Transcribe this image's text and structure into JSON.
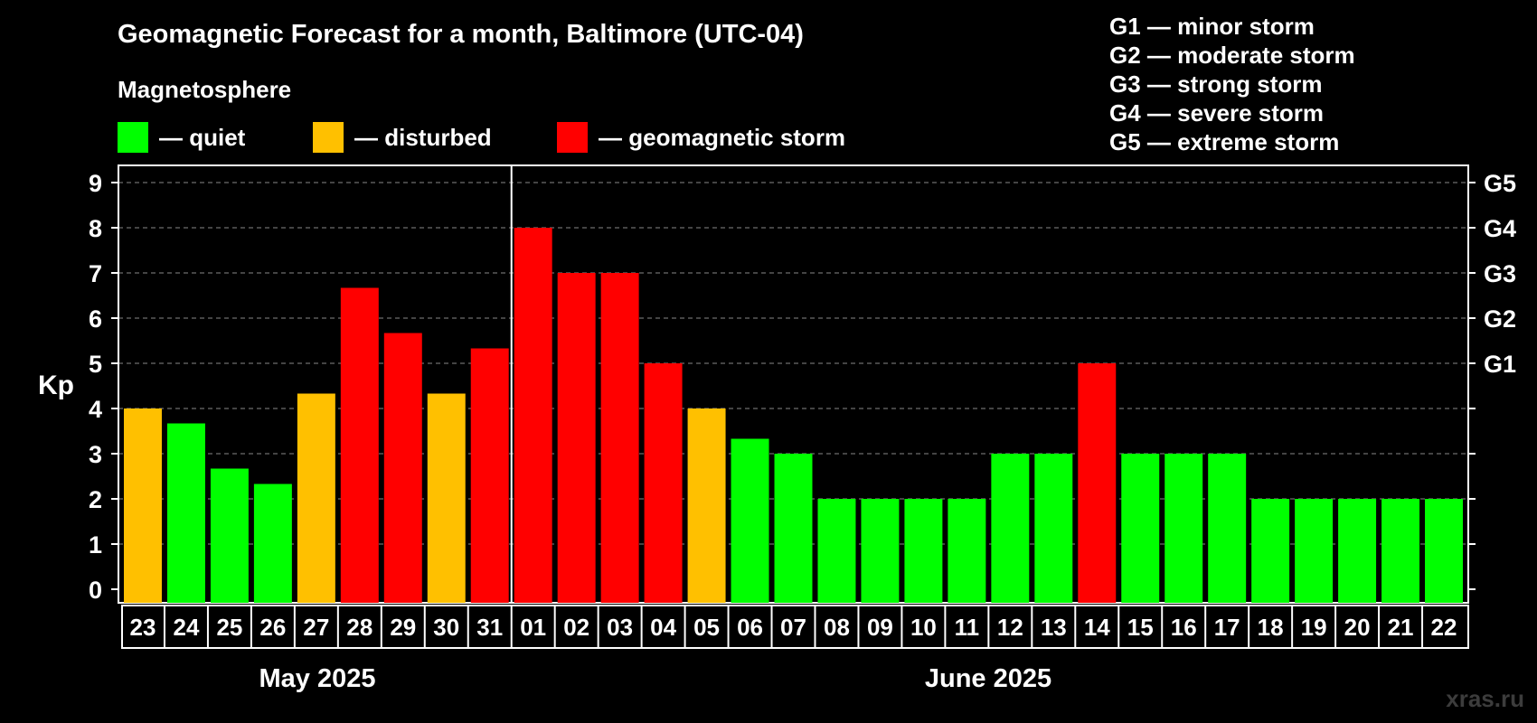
{
  "header": {
    "title": "Geomagnetic Forecast for a month, Baltimore (UTC-04)",
    "subtitle": "Magnetosphere"
  },
  "legend": [
    {
      "label": "— quiet",
      "color": "#00ff00"
    },
    {
      "label": "— disturbed",
      "color": "#ffc000"
    },
    {
      "label": "— geomagnetic storm",
      "color": "#ff0000"
    }
  ],
  "storm_legend": [
    "G1 — minor storm",
    "G2 — moderate storm",
    "G3 — strong storm",
    "G4 — severe storm",
    "G5 — extreme storm"
  ],
  "months": {
    "may": "May 2025",
    "june": "June 2025"
  },
  "watermark": "xras.ru",
  "colors": {
    "quiet": "#00ff00",
    "disturbed": "#ffc000",
    "storm": "#ff0000",
    "background": "#000000",
    "grid": "#888888"
  },
  "chart_data": {
    "type": "bar",
    "title": "Geomagnetic Forecast for a month, Baltimore (UTC-04)",
    "ylabel": "Kp",
    "ylim": [
      0,
      9
    ],
    "yticks": [
      "0",
      "1",
      "2",
      "3",
      "4",
      "5",
      "6",
      "7",
      "8",
      "9"
    ],
    "right_ticks": [
      {
        "value": 5,
        "label": "G1"
      },
      {
        "value": 6,
        "label": "G2"
      },
      {
        "value": 7,
        "label": "G3"
      },
      {
        "value": 8,
        "label": "G4"
      },
      {
        "value": 9,
        "label": "G5"
      }
    ],
    "month_boundary_after_index": 8,
    "categories": [
      "23",
      "24",
      "25",
      "26",
      "27",
      "28",
      "29",
      "30",
      "31",
      "01",
      "02",
      "03",
      "04",
      "05",
      "06",
      "07",
      "08",
      "09",
      "10",
      "11",
      "12",
      "13",
      "14",
      "15",
      "16",
      "17",
      "18",
      "19",
      "20",
      "21",
      "22"
    ],
    "values": [
      4,
      3.67,
      2.67,
      2.33,
      4.33,
      6.67,
      5.67,
      4.33,
      5.33,
      8,
      7,
      7,
      5,
      4,
      3.33,
      3,
      2,
      2,
      2,
      2,
      3,
      3,
      5,
      3,
      3,
      3,
      2,
      2,
      2,
      2,
      2
    ],
    "status": [
      "disturbed",
      "quiet",
      "quiet",
      "quiet",
      "disturbed",
      "storm",
      "storm",
      "disturbed",
      "storm",
      "storm",
      "storm",
      "storm",
      "storm",
      "disturbed",
      "quiet",
      "quiet",
      "quiet",
      "quiet",
      "quiet",
      "quiet",
      "quiet",
      "quiet",
      "storm",
      "quiet",
      "quiet",
      "quiet",
      "quiet",
      "quiet",
      "quiet",
      "quiet",
      "quiet"
    ]
  }
}
